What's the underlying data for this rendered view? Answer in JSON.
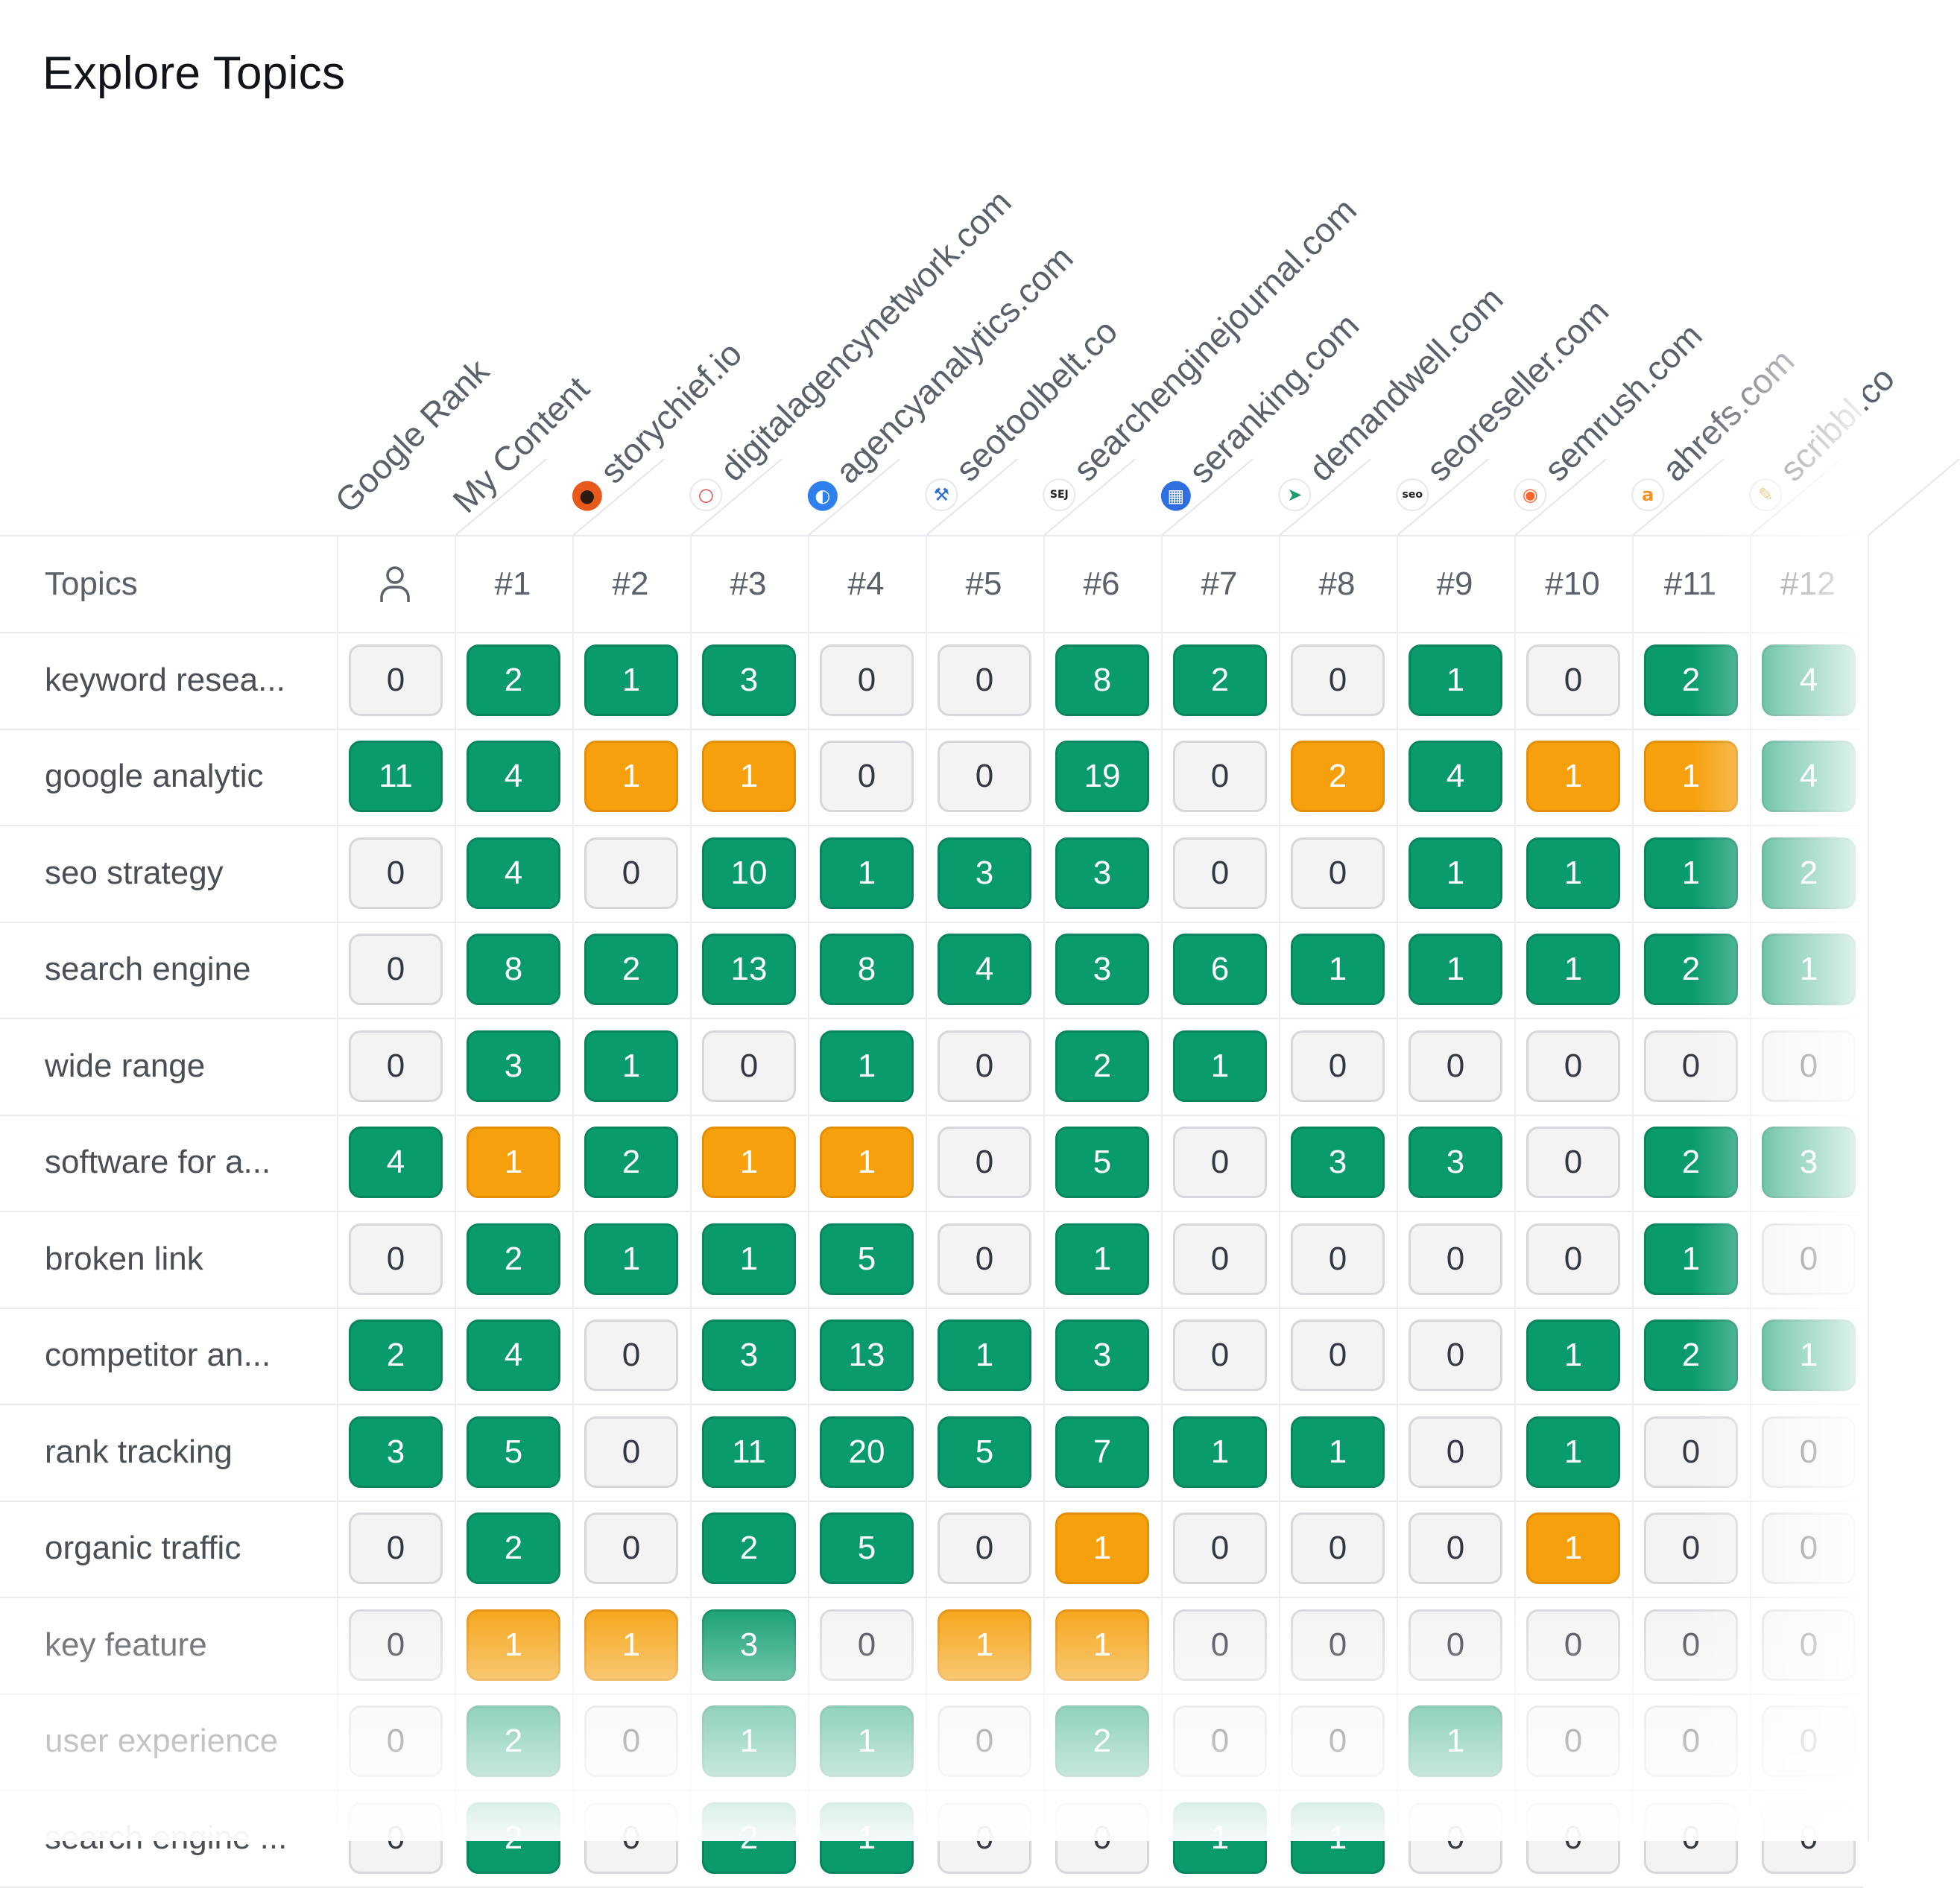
{
  "title": "Explore Topics",
  "columns": [
    {
      "label": "Google Rank",
      "icon": null
    },
    {
      "label": "My Content",
      "icon": null
    },
    {
      "label": "storychief.io",
      "icon": "storychief-favicon",
      "bg": "#e85a1b",
      "fg": "#2b1a12",
      "glyph": "●"
    },
    {
      "label": "digitalagencynetwork.com",
      "icon": "digitalagencynetwork-favicon",
      "bg": "#ffffff",
      "fg": "#e8403a",
      "glyph": "○"
    },
    {
      "label": "agencyanalytics.com",
      "icon": "agencyanalytics-favicon",
      "bg": "#2f80ed",
      "fg": "#ffffff",
      "glyph": "◐"
    },
    {
      "label": "seotoolbelt.co",
      "icon": "seotoolbelt-favicon",
      "bg": "#ffffff",
      "fg": "#2b6fd6",
      "glyph": "⚒"
    },
    {
      "label": "searchenginejournal.com",
      "icon": "searchenginejournal-favicon",
      "bg": "#ffffff",
      "fg": "#222222",
      "glyph": "SEJ"
    },
    {
      "label": "seranking.com",
      "icon": "seranking-favicon",
      "bg": "#2f6fe0",
      "fg": "#ffffff",
      "glyph": "▦"
    },
    {
      "label": "demandwell.com",
      "icon": "demandwell-favicon",
      "bg": "#ffffff",
      "fg": "#1a9c6b",
      "glyph": "➤"
    },
    {
      "label": "seoreseller.com",
      "icon": "seoreseller-favicon",
      "bg": "#ffffff",
      "fg": "#222222",
      "glyph": "seo"
    },
    {
      "label": "semrush.com",
      "icon": "semrush-favicon",
      "bg": "#ffffff",
      "fg": "#ff642d",
      "glyph": "◉"
    },
    {
      "label": "ahrefs.com",
      "icon": "ahrefs-favicon",
      "bg": "#ffffff",
      "fg": "#f7921e",
      "glyph": "a"
    },
    {
      "label": "scribbl.co",
      "icon": "scribbl-favicon",
      "bg": "#ffffff",
      "fg": "#d9a640",
      "glyph": "✎"
    }
  ],
  "header_row": {
    "topics_label": "Topics",
    "google_rank_icon": "user-icon",
    "ranks": [
      "#1",
      "#2",
      "#3",
      "#4",
      "#5",
      "#6",
      "#7",
      "#8",
      "#9",
      "#10",
      "#11",
      "#12"
    ]
  },
  "rows": [
    {
      "topic": "keyword resea...",
      "values": [
        0,
        2,
        1,
        3,
        0,
        0,
        8,
        2,
        0,
        1,
        0,
        2,
        4
      ],
      "colors": [
        "z",
        "g",
        "g",
        "g",
        "z",
        "z",
        "g",
        "g",
        "z",
        "g",
        "z",
        "g",
        "g"
      ]
    },
    {
      "topic": "google analytic",
      "values": [
        11,
        4,
        1,
        1,
        0,
        0,
        19,
        0,
        2,
        4,
        1,
        1,
        4
      ],
      "colors": [
        "g",
        "g",
        "o",
        "o",
        "z",
        "z",
        "g",
        "z",
        "o",
        "g",
        "o",
        "o",
        "g"
      ]
    },
    {
      "topic": "seo strategy",
      "values": [
        0,
        4,
        0,
        10,
        1,
        3,
        3,
        0,
        0,
        1,
        1,
        1,
        2
      ],
      "colors": [
        "z",
        "g",
        "z",
        "g",
        "g",
        "g",
        "g",
        "z",
        "z",
        "g",
        "g",
        "g",
        "g"
      ]
    },
    {
      "topic": "search engine",
      "values": [
        0,
        8,
        2,
        13,
        8,
        4,
        3,
        6,
        1,
        1,
        1,
        2,
        1
      ],
      "colors": [
        "z",
        "g",
        "g",
        "g",
        "g",
        "g",
        "g",
        "g",
        "g",
        "g",
        "g",
        "g",
        "g"
      ]
    },
    {
      "topic": "wide range",
      "values": [
        0,
        3,
        1,
        0,
        1,
        0,
        2,
        1,
        0,
        0,
        0,
        0,
        0
      ],
      "colors": [
        "z",
        "g",
        "g",
        "z",
        "g",
        "z",
        "g",
        "g",
        "z",
        "z",
        "z",
        "z",
        "z"
      ]
    },
    {
      "topic": "software for a...",
      "values": [
        4,
        1,
        2,
        1,
        1,
        0,
        5,
        0,
        3,
        3,
        0,
        2,
        3
      ],
      "colors": [
        "g",
        "o",
        "g",
        "o",
        "o",
        "z",
        "g",
        "z",
        "g",
        "g",
        "z",
        "g",
        "g"
      ]
    },
    {
      "topic": "broken link",
      "values": [
        0,
        2,
        1,
        1,
        5,
        0,
        1,
        0,
        0,
        0,
        0,
        1,
        0
      ],
      "colors": [
        "z",
        "g",
        "g",
        "g",
        "g",
        "z",
        "g",
        "z",
        "z",
        "z",
        "z",
        "g",
        "z"
      ]
    },
    {
      "topic": "competitor an...",
      "values": [
        2,
        4,
        0,
        3,
        13,
        1,
        3,
        0,
        0,
        0,
        1,
        2,
        1
      ],
      "colors": [
        "g",
        "g",
        "z",
        "g",
        "g",
        "g",
        "g",
        "z",
        "z",
        "z",
        "g",
        "g",
        "g"
      ]
    },
    {
      "topic": "rank tracking",
      "values": [
        3,
        5,
        0,
        11,
        20,
        5,
        7,
        1,
        1,
        0,
        1,
        0,
        0
      ],
      "colors": [
        "g",
        "g",
        "z",
        "g",
        "g",
        "g",
        "g",
        "g",
        "g",
        "z",
        "g",
        "z",
        "z"
      ]
    },
    {
      "topic": "organic traffic",
      "values": [
        0,
        2,
        0,
        2,
        5,
        0,
        1,
        0,
        0,
        0,
        1,
        0,
        0
      ],
      "colors": [
        "z",
        "g",
        "z",
        "g",
        "g",
        "z",
        "o",
        "z",
        "z",
        "z",
        "o",
        "z",
        "z"
      ]
    },
    {
      "topic": "key feature",
      "values": [
        0,
        1,
        1,
        3,
        0,
        1,
        1,
        0,
        0,
        0,
        0,
        0,
        0
      ],
      "colors": [
        "z",
        "o",
        "o",
        "g",
        "z",
        "o",
        "o",
        "z",
        "z",
        "z",
        "z",
        "z",
        "z"
      ]
    },
    {
      "topic": "user experience",
      "values": [
        0,
        2,
        0,
        1,
        1,
        0,
        2,
        0,
        0,
        1,
        0,
        0,
        0
      ],
      "colors": [
        "z",
        "g",
        "z",
        "g",
        "g",
        "z",
        "g",
        "z",
        "z",
        "g",
        "z",
        "z",
        "z"
      ]
    },
    {
      "topic": "search engine ...",
      "values": [
        0,
        2,
        0,
        2,
        1,
        0,
        0,
        1,
        1,
        0,
        0,
        0,
        0
      ],
      "colors": [
        "z",
        "g",
        "z",
        "g",
        "g",
        "z",
        "z",
        "g",
        "g",
        "z",
        "z",
        "z",
        "z"
      ]
    }
  ],
  "colors": {
    "green": "#0a9b6d",
    "orange": "#f5a00c",
    "zero_bg": "#f3f3f4",
    "zero_border": "#d5d7da"
  }
}
